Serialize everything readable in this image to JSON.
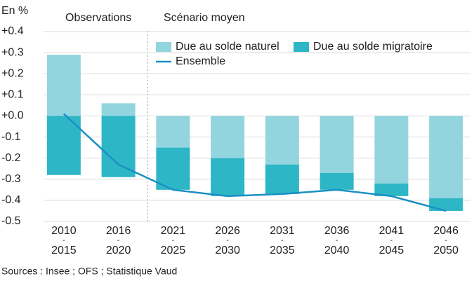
{
  "chart_data": {
    "type": "bar",
    "y_unit_label": "En %",
    "annotations": [
      "Observations",
      "Scénario moyen"
    ],
    "source": "Sources : Insee ; OFS ; Statistique Vaud",
    "categories": [
      "2010 - 2015",
      "2016 - 2020",
      "2021 - 2025",
      "2026 - 2030",
      "2031 - 2035",
      "2036 - 2040",
      "2041 - 2045",
      "2046 - 2050"
    ],
    "series": [
      {
        "name": "Due au solde naturel",
        "color": "#93d5df",
        "values": [
          0.29,
          0.06,
          -0.15,
          -0.2,
          -0.23,
          -0.27,
          -0.32,
          -0.39
        ]
      },
      {
        "name": "Due au solde migratoire",
        "color": "#2db6c6",
        "values": [
          -0.28,
          -0.29,
          -0.2,
          -0.18,
          -0.14,
          -0.08,
          -0.06,
          -0.06
        ]
      },
      {
        "name": "Ensemble",
        "type": "line",
        "color": "#1b90c3",
        "values": [
          0.01,
          -0.23,
          -0.35,
          -0.38,
          -0.37,
          -0.35,
          -0.38,
          -0.45
        ]
      }
    ],
    "ylim": [
      -0.5,
      0.4
    ],
    "yticks": [
      {
        "value": 0.4,
        "label": "+0.4"
      },
      {
        "value": 0.3,
        "label": "+0.3"
      },
      {
        "value": 0.2,
        "label": "+0.2"
      },
      {
        "value": 0.1,
        "label": "+0.1"
      },
      {
        "value": 0.0,
        "label": "+0.0"
      },
      -0.1,
      -0.2,
      -0.3,
      -0.4,
      -0.5
    ],
    "grid": true
  }
}
